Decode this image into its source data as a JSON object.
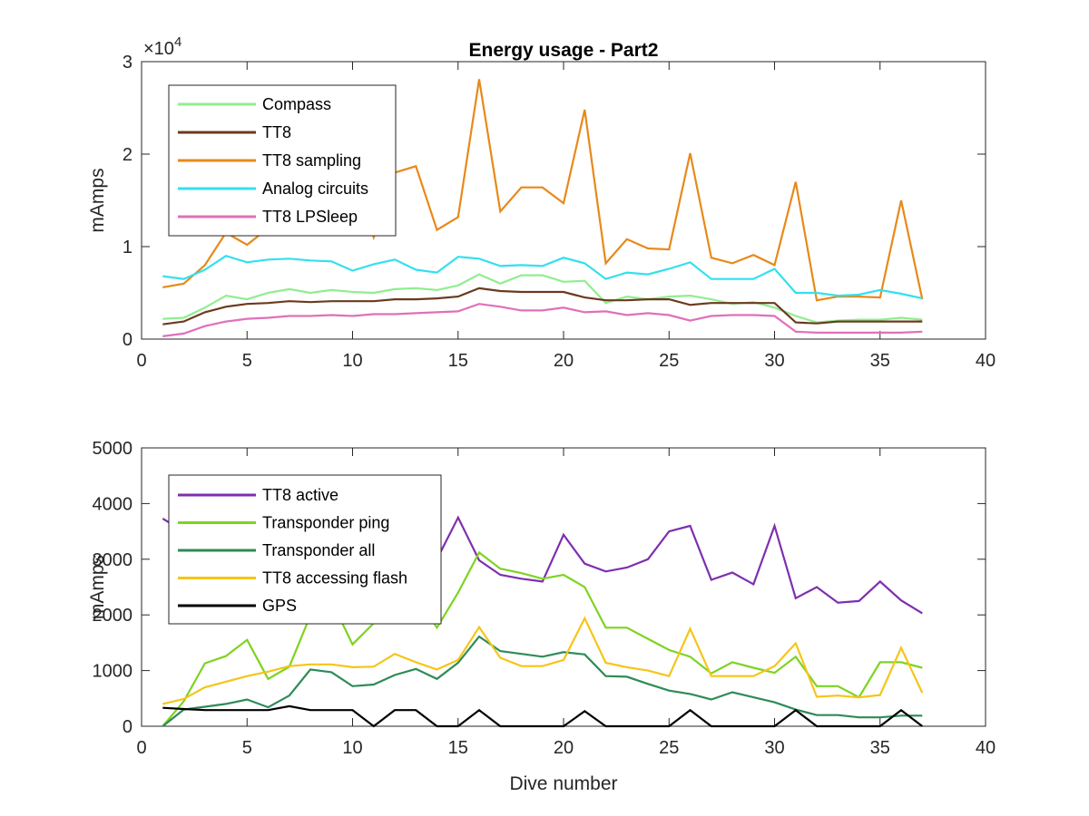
{
  "chart_data": [
    {
      "type": "line",
      "title": "Energy usage - Part2",
      "xlabel": "",
      "ylabel": "mAmps",
      "xlim": [
        0,
        40
      ],
      "ylim": [
        0,
        30000
      ],
      "xticks": [
        0,
        5,
        10,
        15,
        20,
        25,
        30,
        35,
        40
      ],
      "yticks": [
        0,
        10000,
        20000,
        30000
      ],
      "ytick_labels": [
        "0",
        "1",
        "2",
        "3"
      ],
      "exponent_label": "×10",
      "exponent_power": "4",
      "grid": false,
      "legend_position": "top-left",
      "x": [
        1,
        2,
        3,
        4,
        5,
        6,
        7,
        8,
        9,
        10,
        11,
        12,
        13,
        14,
        15,
        16,
        17,
        18,
        19,
        20,
        21,
        22,
        23,
        24,
        25,
        26,
        27,
        28,
        29,
        30,
        31,
        32,
        33,
        34,
        35,
        36,
        37
      ],
      "series": [
        {
          "name": "Compass",
          "color": "#90EE90",
          "values": [
            2200,
            2300,
            3400,
            4700,
            4300,
            5000,
            5400,
            5000,
            5300,
            5100,
            5000,
            5400,
            5500,
            5300,
            5800,
            7000,
            6000,
            6900,
            6900,
            6200,
            6300,
            3900,
            4600,
            4300,
            4600,
            4700,
            4300,
            3800,
            4000,
            3400,
            2500,
            1800,
            2000,
            2100,
            2100,
            2300,
            2100
          ]
        },
        {
          "name": "TT8",
          "color": "#6B3A1E",
          "values": [
            1600,
            1900,
            2900,
            3500,
            3800,
            3900,
            4100,
            4000,
            4100,
            4100,
            4100,
            4300,
            4300,
            4400,
            4600,
            5500,
            5200,
            5100,
            5100,
            5100,
            4500,
            4200,
            4200,
            4300,
            4300,
            3700,
            3900,
            3900,
            3900,
            3900,
            1800,
            1700,
            1900,
            1900,
            1900,
            1900,
            1900
          ]
        },
        {
          "name": "TT8 sampling",
          "color": "#E8891A",
          "values": [
            5600,
            6000,
            8000,
            11500,
            10200,
            12000,
            14000,
            15500,
            17000,
            17500,
            11000,
            18000,
            18700,
            11800,
            13200,
            28100,
            13800,
            16400,
            16400,
            14700,
            24800,
            8200,
            10800,
            9800,
            9700,
            20100,
            8800,
            8200,
            9100,
            8000,
            17000,
            4200,
            4600,
            4600,
            4500,
            15000,
            4300
          ]
        },
        {
          "name": "Analog circuits",
          "color": "#33E0EE",
          "values": [
            6800,
            6500,
            7500,
            9000,
            8300,
            8600,
            8700,
            8500,
            8400,
            7400,
            8100,
            8600,
            7500,
            7200,
            8900,
            8700,
            7900,
            8000,
            7900,
            8800,
            8200,
            6500,
            7200,
            7000,
            7600,
            8300,
            6500,
            6500,
            6500,
            7600,
            5000,
            5000,
            4700,
            4800,
            5300,
            4900,
            4400
          ]
        },
        {
          "name": "TT8 LPSleep",
          "color": "#E070B8",
          "values": [
            300,
            600,
            1400,
            1900,
            2200,
            2300,
            2500,
            2500,
            2600,
            2500,
            2700,
            2700,
            2800,
            2900,
            3000,
            3800,
            3500,
            3100,
            3100,
            3400,
            2900,
            3000,
            2600,
            2800,
            2600,
            2000,
            2500,
            2600,
            2600,
            2500,
            800,
            700,
            700,
            700,
            700,
            700,
            800
          ]
        }
      ]
    },
    {
      "type": "line",
      "title": "",
      "xlabel": "Dive number",
      "ylabel": "mAmps",
      "xlim": [
        0,
        40
      ],
      "ylim": [
        0,
        5000
      ],
      "xticks": [
        0,
        5,
        10,
        15,
        20,
        25,
        30,
        35,
        40
      ],
      "yticks": [
        0,
        1000,
        2000,
        3000,
        4000,
        5000
      ],
      "grid": false,
      "legend_position": "top-left",
      "x": [
        1,
        2,
        3,
        4,
        5,
        6,
        7,
        8,
        9,
        10,
        11,
        12,
        13,
        14,
        15,
        16,
        17,
        18,
        19,
        20,
        21,
        22,
        23,
        24,
        25,
        26,
        27,
        28,
        29,
        30,
        31,
        32,
        33,
        34,
        35,
        36,
        37
      ],
      "series": [
        {
          "name": "TT8 active",
          "color": "#7E2FAF",
          "values": [
            3730,
            3500,
            3200,
            3000,
            3000,
            3000,
            3000,
            3000,
            3000,
            3100,
            3100,
            3000,
            3000,
            3000,
            3750,
            2980,
            2720,
            2650,
            2600,
            3440,
            2920,
            2780,
            2850,
            3000,
            3500,
            3600,
            2630,
            2760,
            2550,
            3600,
            2300,
            2500,
            2220,
            2250,
            2600,
            2260,
            2030
          ]
        },
        {
          "name": "Transponder ping",
          "color": "#7ED321",
          "values": [
            0,
            450,
            1130,
            1260,
            1550,
            850,
            1070,
            1990,
            2250,
            1470,
            1850,
            2100,
            2350,
            1770,
            2400,
            3120,
            2830,
            2750,
            2650,
            2720,
            2500,
            1770,
            1770,
            1570,
            1370,
            1250,
            950,
            1150,
            1050,
            960,
            1250,
            720,
            720,
            520,
            1150,
            1150,
            1050
          ]
        },
        {
          "name": "Transponder all",
          "color": "#2E8B57",
          "values": [
            0,
            300,
            350,
            400,
            480,
            340,
            550,
            1020,
            970,
            720,
            750,
            920,
            1030,
            850,
            1140,
            1610,
            1350,
            1300,
            1250,
            1330,
            1290,
            900,
            890,
            760,
            640,
            580,
            480,
            610,
            520,
            430,
            300,
            200,
            200,
            160,
            160,
            190,
            190
          ]
        },
        {
          "name": "TT8 accessing flash",
          "color": "#F5C518",
          "values": [
            400,
            490,
            700,
            800,
            900,
            980,
            1080,
            1110,
            1110,
            1060,
            1070,
            1300,
            1150,
            1020,
            1190,
            1780,
            1230,
            1080,
            1080,
            1190,
            1940,
            1140,
            1060,
            1000,
            900,
            1750,
            900,
            900,
            900,
            1080,
            1490,
            530,
            550,
            520,
            560,
            1410,
            600
          ]
        },
        {
          "name": "GPS",
          "color": "#000000",
          "values": [
            330,
            310,
            290,
            290,
            290,
            290,
            360,
            290,
            290,
            290,
            0,
            290,
            290,
            0,
            0,
            290,
            0,
            0,
            0,
            0,
            270,
            0,
            0,
            0,
            0,
            290,
            0,
            0,
            0,
            0,
            290,
            0,
            0,
            0,
            0,
            290,
            0
          ]
        }
      ]
    }
  ]
}
